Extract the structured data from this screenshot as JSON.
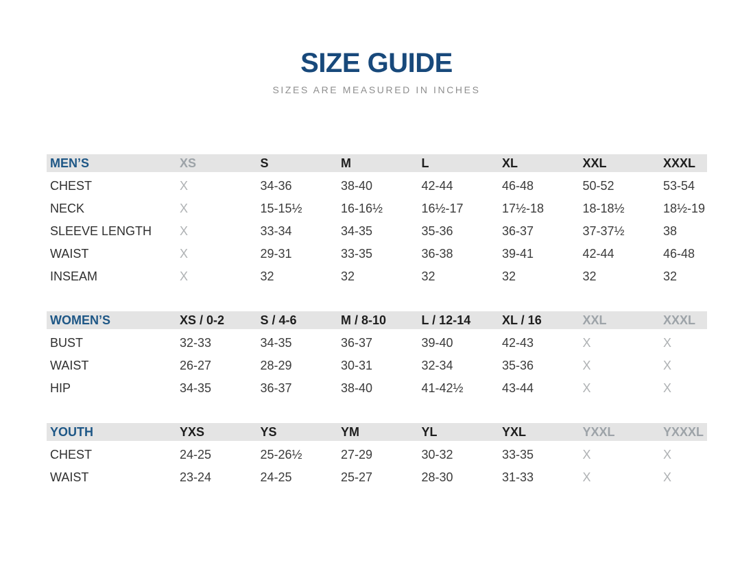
{
  "page": {
    "title": "SIZE GUIDE",
    "subtitle": "SIZES ARE MEASURED IN INCHES"
  },
  "colors": {
    "title_blue": "#18497B",
    "section_blue": "#1E5786",
    "header_bar_bg": "#E4E4E4",
    "header_text": "#1E1E1E",
    "disabled_header_text": "#9DA3A8",
    "value_text": "#3B3B3B",
    "placeholder_text": "#AFB2B4",
    "subtitle_text": "#8E8E8E"
  },
  "sections": [
    {
      "label": "MEN’S",
      "columns": [
        {
          "label": "XS",
          "disabled": true
        },
        {
          "label": "S",
          "disabled": false
        },
        {
          "label": "M",
          "disabled": false
        },
        {
          "label": "L",
          "disabled": false
        },
        {
          "label": "XL",
          "disabled": false
        },
        {
          "label": "XXL",
          "disabled": false
        },
        {
          "label": "XXXL",
          "disabled": false
        }
      ],
      "rows": [
        {
          "label": "CHEST",
          "values": [
            "X",
            "34-36",
            "38-40",
            "42-44",
            "46-48",
            "50-52",
            "53-54"
          ]
        },
        {
          "label": "NECK",
          "values": [
            "X",
            "15-15½",
            "16-16½",
            "16½-17",
            "17½-18",
            "18-18½",
            "18½-19"
          ]
        },
        {
          "label": "SLEEVE LENGTH",
          "values": [
            "X",
            "33-34",
            "34-35",
            "35-36",
            "36-37",
            "37-37½",
            "38"
          ]
        },
        {
          "label": "WAIST",
          "values": [
            "X",
            "29-31",
            "33-35",
            "36-38",
            "39-41",
            "42-44",
            "46-48"
          ]
        },
        {
          "label": "INSEAM",
          "values": [
            "X",
            "32",
            "32",
            "32",
            "32",
            "32",
            "32"
          ]
        }
      ]
    },
    {
      "label": "WOMEN’S",
      "columns": [
        {
          "label": "XS / 0-2",
          "disabled": false
        },
        {
          "label": "S / 4-6",
          "disabled": false
        },
        {
          "label": "M / 8-10",
          "disabled": false
        },
        {
          "label": "L / 12-14",
          "disabled": false
        },
        {
          "label": "XL / 16",
          "disabled": false
        },
        {
          "label": "XXL",
          "disabled": true
        },
        {
          "label": "XXXL",
          "disabled": true
        }
      ],
      "rows": [
        {
          "label": "BUST",
          "values": [
            "32-33",
            "34-35",
            "36-37",
            "39-40",
            "42-43",
            "X",
            "X"
          ]
        },
        {
          "label": "WAIST",
          "values": [
            "26-27",
            "28-29",
            "30-31",
            "32-34",
            "35-36",
            "X",
            "X"
          ]
        },
        {
          "label": "HIP",
          "values": [
            "34-35",
            "36-37",
            "38-40",
            "41-42½",
            "43-44",
            "X",
            "X"
          ]
        }
      ]
    },
    {
      "label": "YOUTH",
      "columns": [
        {
          "label": "YXS",
          "disabled": false
        },
        {
          "label": "YS",
          "disabled": false
        },
        {
          "label": "YM",
          "disabled": false
        },
        {
          "label": "YL",
          "disabled": false
        },
        {
          "label": "YXL",
          "disabled": false
        },
        {
          "label": "YXXL",
          "disabled": true
        },
        {
          "label": "YXXXL",
          "disabled": true
        }
      ],
      "rows": [
        {
          "label": "CHEST",
          "values": [
            "24-25",
            "25-26½",
            "27-29",
            "30-32",
            "33-35",
            "X",
            "X"
          ]
        },
        {
          "label": "WAIST",
          "values": [
            "23-24",
            "24-25",
            "25-27",
            "28-30",
            "31-33",
            "X",
            "X"
          ]
        }
      ]
    }
  ]
}
